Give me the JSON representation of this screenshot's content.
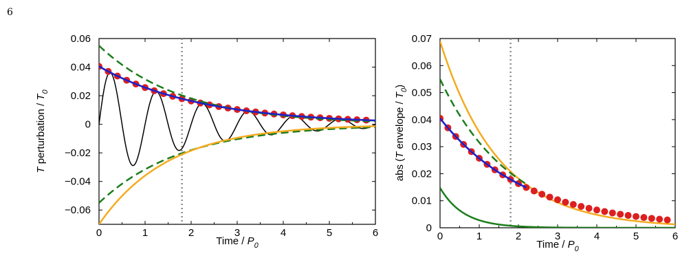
{
  "page": {
    "number": "6"
  },
  "colors": {
    "black": "#000000",
    "red_marker": "#dd1f1f",
    "blue_line": "#1d23c9",
    "green_dashed": "#1a7d1a",
    "green_solid": "#1a7d1a",
    "orange": "#f4ab1f",
    "vline": "#8c8c8c"
  },
  "chart_data": [
    {
      "type": "line",
      "title": "",
      "xlabel": {
        "main": "Time / ",
        "symbol": "P",
        "sub": "0"
      },
      "ylabel": {
        "symbol": "T",
        "text": " perturbation / ",
        "symbol2": "T",
        "sub": "0"
      },
      "xlim": [
        0,
        6
      ],
      "ylim": [
        -0.07,
        0.06
      ],
      "xticks": [
        0,
        1,
        2,
        3,
        4,
        5,
        6
      ],
      "xtick_labels": [
        "0",
        "1",
        "2",
        "3",
        "4",
        "5",
        "6"
      ],
      "yticks": [
        -0.06,
        -0.04,
        -0.02,
        0,
        0.02,
        0.04,
        0.06
      ],
      "ytick_labels": [
        "−0.06",
        "−0.04",
        "−0.02",
        "0",
        "0.02",
        "0.04",
        "0.06"
      ],
      "vertical_line_x": 1.8,
      "grid": false,
      "series": [
        {
          "style": "solid-black",
          "kind": "damped-oscillation",
          "amplitude": 0.0405,
          "decay_tau": 2.2,
          "period": 1.0,
          "phase": 0.25,
          "x_range": [
            0,
            6.1
          ]
        },
        {
          "style": "red-markers",
          "kind": "decaying-exponential",
          "amplitude": 0.0405,
          "decay_tau": 2.2,
          "x_start": 0,
          "x_step": 0.2,
          "count": 30
        },
        {
          "style": "solid-blue",
          "kind": "decaying-exponential",
          "amplitude": 0.0405,
          "decay_tau": 2.2,
          "x_range": [
            0,
            6
          ]
        },
        {
          "style": "dashed-green",
          "kind": "mirrored-exponential",
          "amplitude": 0.055,
          "decay_tau": 1.8,
          "x_range": [
            0,
            6
          ]
        },
        {
          "style": "solid-orange",
          "kind": "negative-exponential",
          "amplitude": 0.07,
          "decay_tau": 1.5,
          "x_range": [
            0,
            6
          ]
        }
      ]
    },
    {
      "type": "line",
      "title": "",
      "xlabel": {
        "main": "Time / ",
        "symbol": "P",
        "sub": "0"
      },
      "ylabel": {
        "text": "abs (",
        "symbol": "T",
        "text2": " envelope / ",
        "symbol2": "T",
        "sub": "0",
        "close": ")"
      },
      "xlim": [
        0,
        6
      ],
      "ylim": [
        0,
        0.07
      ],
      "xticks": [
        0,
        1,
        2,
        3,
        4,
        5,
        6
      ],
      "xtick_labels": [
        "0",
        "1",
        "2",
        "3",
        "4",
        "5",
        "6"
      ],
      "yticks": [
        0,
        0.01,
        0.02,
        0.03,
        0.04,
        0.05,
        0.06,
        0.07
      ],
      "ytick_labels": [
        "0",
        "0.01",
        "0.02",
        "0.03",
        "0.04",
        "0.05",
        "0.06",
        "0.07"
      ],
      "vertical_line_x": 1.8,
      "grid": false,
      "series": [
        {
          "style": "solid-orange",
          "kind": "decaying-exponential",
          "amplitude": 0.069,
          "decay_tau": 1.5,
          "x_range": [
            0,
            6
          ]
        },
        {
          "style": "dashed-green",
          "kind": "decaying-exponential",
          "amplitude": 0.055,
          "decay_tau": 1.8,
          "x_range": [
            0,
            2.2
          ]
        },
        {
          "style": "solid-green",
          "kind": "decaying-exponential",
          "amplitude": 0.0148,
          "decay_tau": 0.6,
          "x_range": [
            0,
            6
          ]
        },
        {
          "style": "red-markers",
          "kind": "decaying-exponential",
          "amplitude": 0.0405,
          "decay_tau": 2.2,
          "x_start": 0,
          "x_step": 0.2,
          "count": 30
        },
        {
          "style": "solid-blue",
          "kind": "decaying-exponential",
          "amplitude": 0.0405,
          "decay_tau": 2.2,
          "x_range": [
            0,
            2.2
          ]
        }
      ]
    }
  ]
}
